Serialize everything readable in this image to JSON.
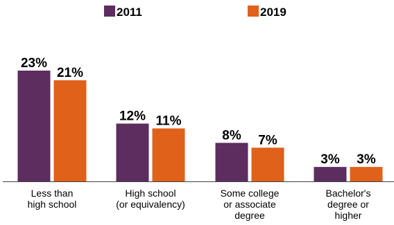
{
  "chart_data": {
    "type": "bar",
    "categories": [
      [
        "Less than",
        "high school"
      ],
      [
        "High school",
        "(or equivalency)"
      ],
      [
        "Some college",
        "or associate",
        "degree"
      ],
      [
        "Bachelor's",
        "degree or",
        "higher"
      ]
    ],
    "series": [
      {
        "name": "2011",
        "color": "#5c2d5e",
        "values": [
          23,
          12,
          8,
          3
        ],
        "labels": [
          "23%",
          "12%",
          "8%",
          "3%"
        ]
      },
      {
        "name": "2019",
        "color": "#e0611a",
        "values": [
          21,
          11,
          7,
          3
        ],
        "labels": [
          "21%",
          "11%",
          "7%",
          "3%"
        ]
      }
    ],
    "ylim": [
      0,
      23
    ],
    "grid": false,
    "legend_position": "top-center",
    "baseline_color": "#404040"
  }
}
